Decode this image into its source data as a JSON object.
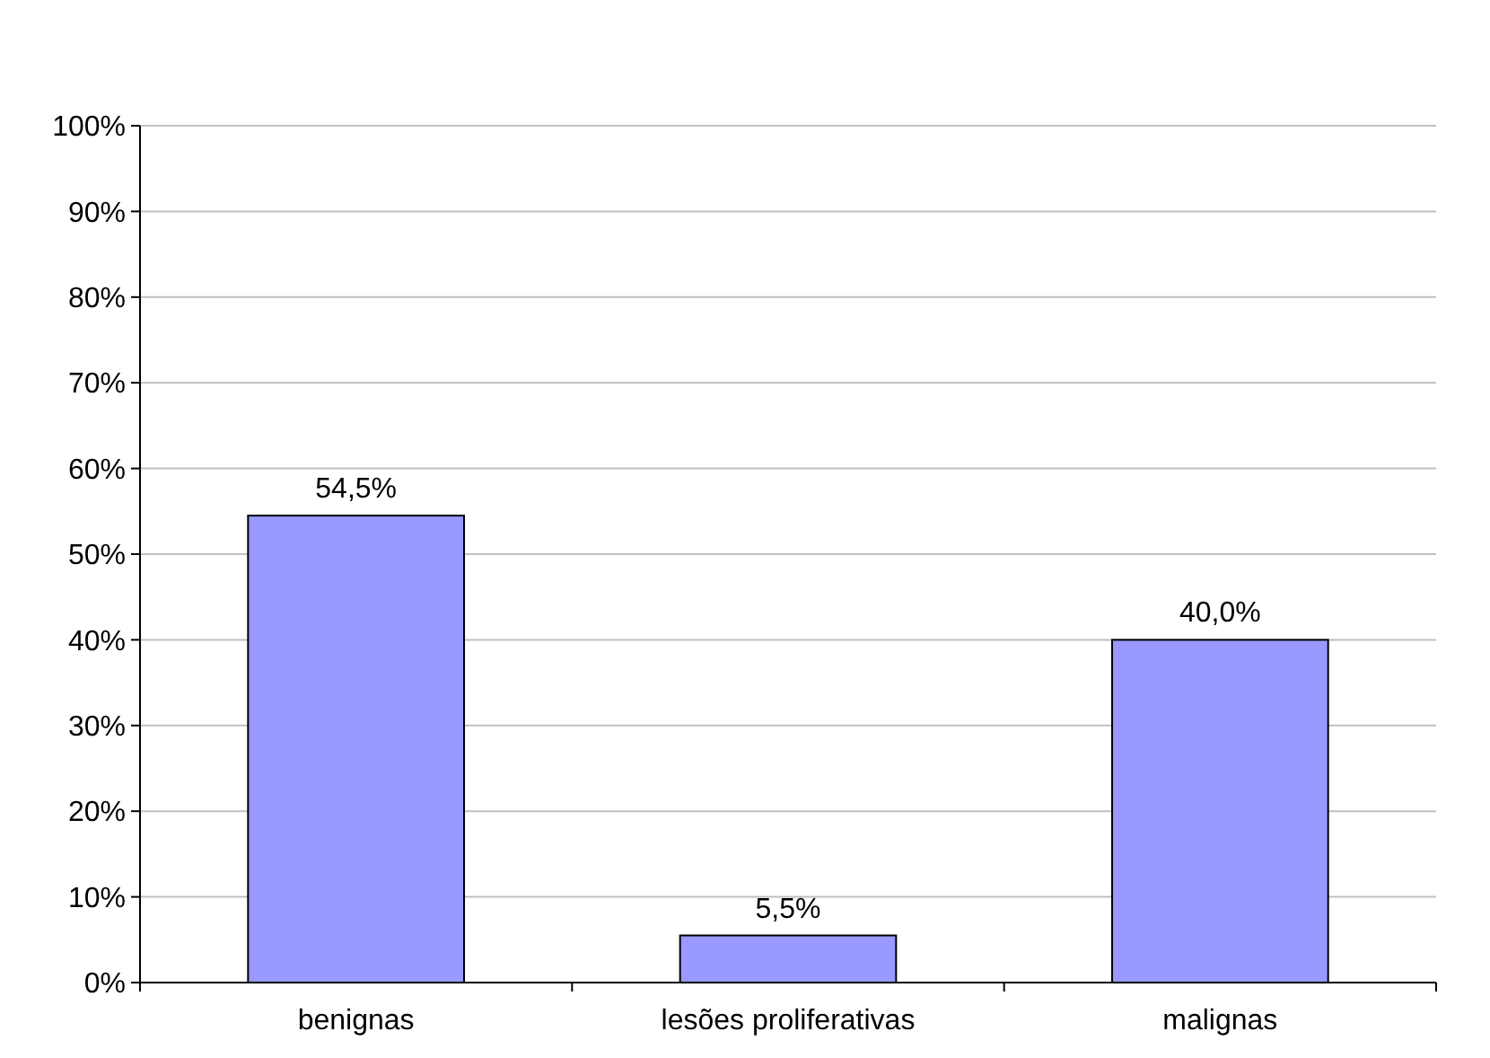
{
  "chart_data": {
    "type": "bar",
    "categories": [
      "benignas",
      "lesões proliferativas",
      "malignas"
    ],
    "values": [
      54.5,
      5.5,
      40.0
    ],
    "value_labels": [
      "54,5%",
      "5,5%",
      "40,0%"
    ],
    "color": "#9999ff",
    "ylim": [
      0,
      100
    ],
    "yticks": [
      {
        "value": 0,
        "label": "0%"
      },
      {
        "value": 10,
        "label": "10%"
      },
      {
        "value": 20,
        "label": "20%"
      },
      {
        "value": 30,
        "label": "30%"
      },
      {
        "value": 40,
        "label": "40%"
      },
      {
        "value": 50,
        "label": "50%"
      },
      {
        "value": 60,
        "label": "60%"
      },
      {
        "value": 70,
        "label": "70%"
      },
      {
        "value": 80,
        "label": "80%"
      },
      {
        "value": 90,
        "label": "90%"
      },
      {
        "value": 100,
        "label": "100%"
      }
    ],
    "grid": "y"
  }
}
